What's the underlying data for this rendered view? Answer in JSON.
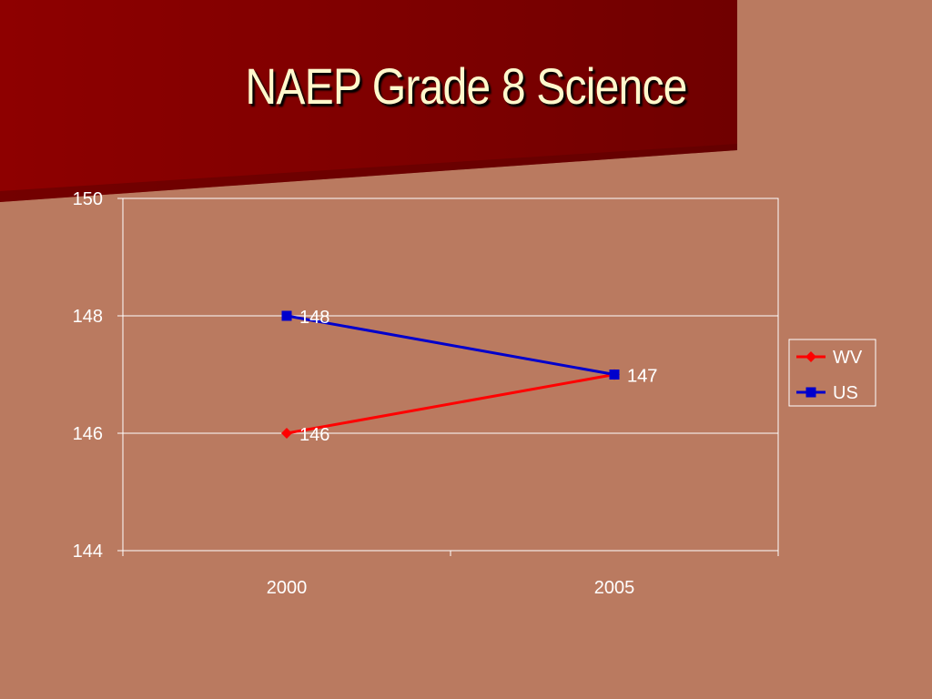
{
  "slide": {
    "title": "NAEP Grade 8 Science"
  },
  "colors": {
    "background": "#ba7a60",
    "banner": "#8b0000",
    "title_text": "#fff8cc",
    "wv": "#ff0000",
    "us": "#0000cc",
    "gridlines": "#ffffff"
  },
  "chart_data": {
    "type": "line",
    "title": "",
    "xlabel": "",
    "ylabel": "",
    "categories": [
      "2000",
      "2005"
    ],
    "ylim": [
      144,
      150
    ],
    "yticks": [
      144,
      146,
      148,
      150
    ],
    "grid": true,
    "legend_position": "right",
    "series": [
      {
        "name": "WV",
        "values": [
          146,
          147
        ],
        "marker": "diamond",
        "color": "#ff0000"
      },
      {
        "name": "US",
        "values": [
          148,
          147
        ],
        "marker": "square",
        "color": "#0000cc"
      }
    ]
  }
}
